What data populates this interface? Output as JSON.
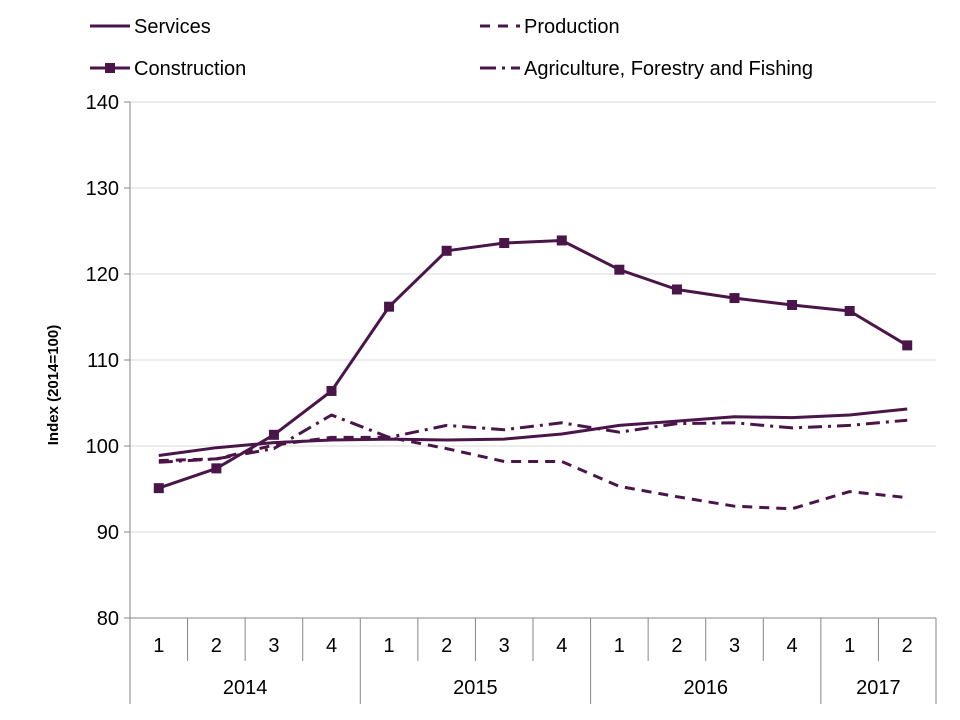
{
  "chart_data": {
    "type": "line",
    "title": "",
    "ylabel": "Index (2014=100)",
    "xlabel": "",
    "ylim": [
      80,
      140
    ],
    "y_ticks": [
      80,
      90,
      100,
      110,
      120,
      130,
      140
    ],
    "grid": true,
    "legend_position": "top",
    "categories": [
      "1",
      "2",
      "3",
      "4",
      "1",
      "2",
      "3",
      "4",
      "1",
      "2",
      "3",
      "4",
      "1",
      "2"
    ],
    "year_groups": [
      {
        "label": "2014",
        "span": 4
      },
      {
        "label": "2015",
        "span": 4
      },
      {
        "label": "2016",
        "span": 4
      },
      {
        "label": "2017",
        "span": 2
      }
    ],
    "series": [
      {
        "name": "Services",
        "style": "solid",
        "marker": "none",
        "color": "#4a1548",
        "values": [
          98.9,
          99.8,
          100.4,
          100.7,
          100.8,
          100.7,
          100.8,
          101.4,
          102.4,
          102.9,
          103.4,
          103.3,
          103.6,
          104.3
        ]
      },
      {
        "name": "Production",
        "style": "dash",
        "marker": "none",
        "color": "#4a1548",
        "values": [
          98.3,
          98.5,
          100.1,
          101.0,
          101.0,
          99.7,
          98.2,
          98.2,
          95.3,
          94.1,
          93.0,
          92.7,
          94.7,
          94.0
        ]
      },
      {
        "name": "Construction",
        "style": "solid",
        "marker": "square",
        "color": "#4a1548",
        "values": [
          95.1,
          97.4,
          101.3,
          106.4,
          116.2,
          122.7,
          123.6,
          123.9,
          120.5,
          118.2,
          117.2,
          116.4,
          115.7,
          111.7
        ]
      },
      {
        "name": "Agriculture, Forestry and Fishing",
        "style": "dashdot",
        "marker": "none",
        "color": "#4a1548",
        "values": [
          98.1,
          98.5,
          99.7,
          103.6,
          101.0,
          102.4,
          101.9,
          102.7,
          101.6,
          102.6,
          102.7,
          102.1,
          102.4,
          103.0
        ]
      }
    ]
  }
}
